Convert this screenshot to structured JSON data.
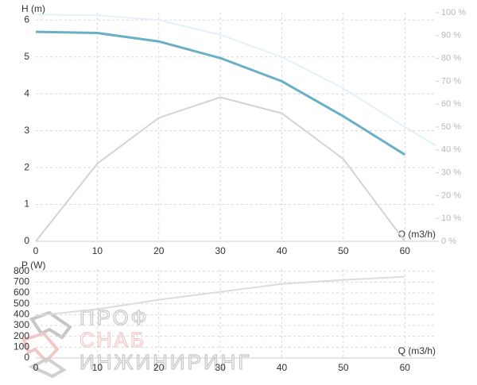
{
  "chart_data": [
    {
      "type": "line",
      "y_label": "H (m)",
      "x_label": "Q (m3/h)",
      "x": [
        0,
        10,
        20,
        30,
        40,
        50,
        60,
        65
      ],
      "series": [
        {
          "color": "#e4f1f7",
          "values": [
            6.15,
            6.13,
            6.0,
            5.6,
            5.0,
            4.15,
            3.1,
            2.6
          ]
        },
        {
          "color": "#6aafc8",
          "values": [
            5.68,
            5.65,
            5.42,
            4.97,
            4.34,
            3.39,
            2.35,
            null
          ]
        },
        {
          "color": "#d3d3d3",
          "axis": "y2",
          "values": [
            0,
            34,
            54,
            63,
            56,
            36,
            0,
            null
          ]
        }
      ],
      "xlim": [
        0,
        65
      ],
      "xticks": [
        0,
        10,
        20,
        30,
        40,
        50,
        60
      ],
      "ylim": [
        0,
        6.2
      ],
      "yticks": [
        0,
        1,
        2,
        3,
        4,
        5,
        6
      ],
      "y2lim": [
        0,
        100
      ],
      "y2ticks": [
        {
          "value": 0,
          "label": "0 %"
        },
        {
          "value": 10,
          "label": "10 %"
        },
        {
          "value": 20,
          "label": "20 %"
        },
        {
          "value": 30,
          "label": "30 %"
        },
        {
          "value": 40,
          "label": "40 %"
        },
        {
          "value": 50,
          "label": "50 %"
        },
        {
          "value": 60,
          "label": "60 %"
        },
        {
          "value": 70,
          "label": "70 %"
        },
        {
          "value": 80,
          "label": "80 %"
        },
        {
          "value": 90,
          "label": "90 %"
        },
        {
          "value": 100,
          "label": "100 %"
        }
      ],
      "grid": true
    },
    {
      "type": "line",
      "y_label": "P (W)",
      "x_label": "Q (m3/h)",
      "x": [
        0,
        10,
        20,
        30,
        40,
        50,
        60
      ],
      "series": [
        {
          "color": "#dcdcdc",
          "values": [
            390,
            450,
            537,
            610,
            684,
            720,
            750
          ]
        }
      ],
      "xlim": [
        0,
        65
      ],
      "xticks": [
        0,
        10,
        20,
        30,
        40,
        50,
        60
      ],
      "ylim": [
        0,
        820
      ],
      "yticks": [
        0,
        100,
        200,
        300,
        400,
        500,
        600,
        700,
        800
      ],
      "grid": true
    }
  ],
  "watermark": [
    "ПРОФ",
    "СНАБ",
    "ИНЖИНИРИНГ"
  ]
}
